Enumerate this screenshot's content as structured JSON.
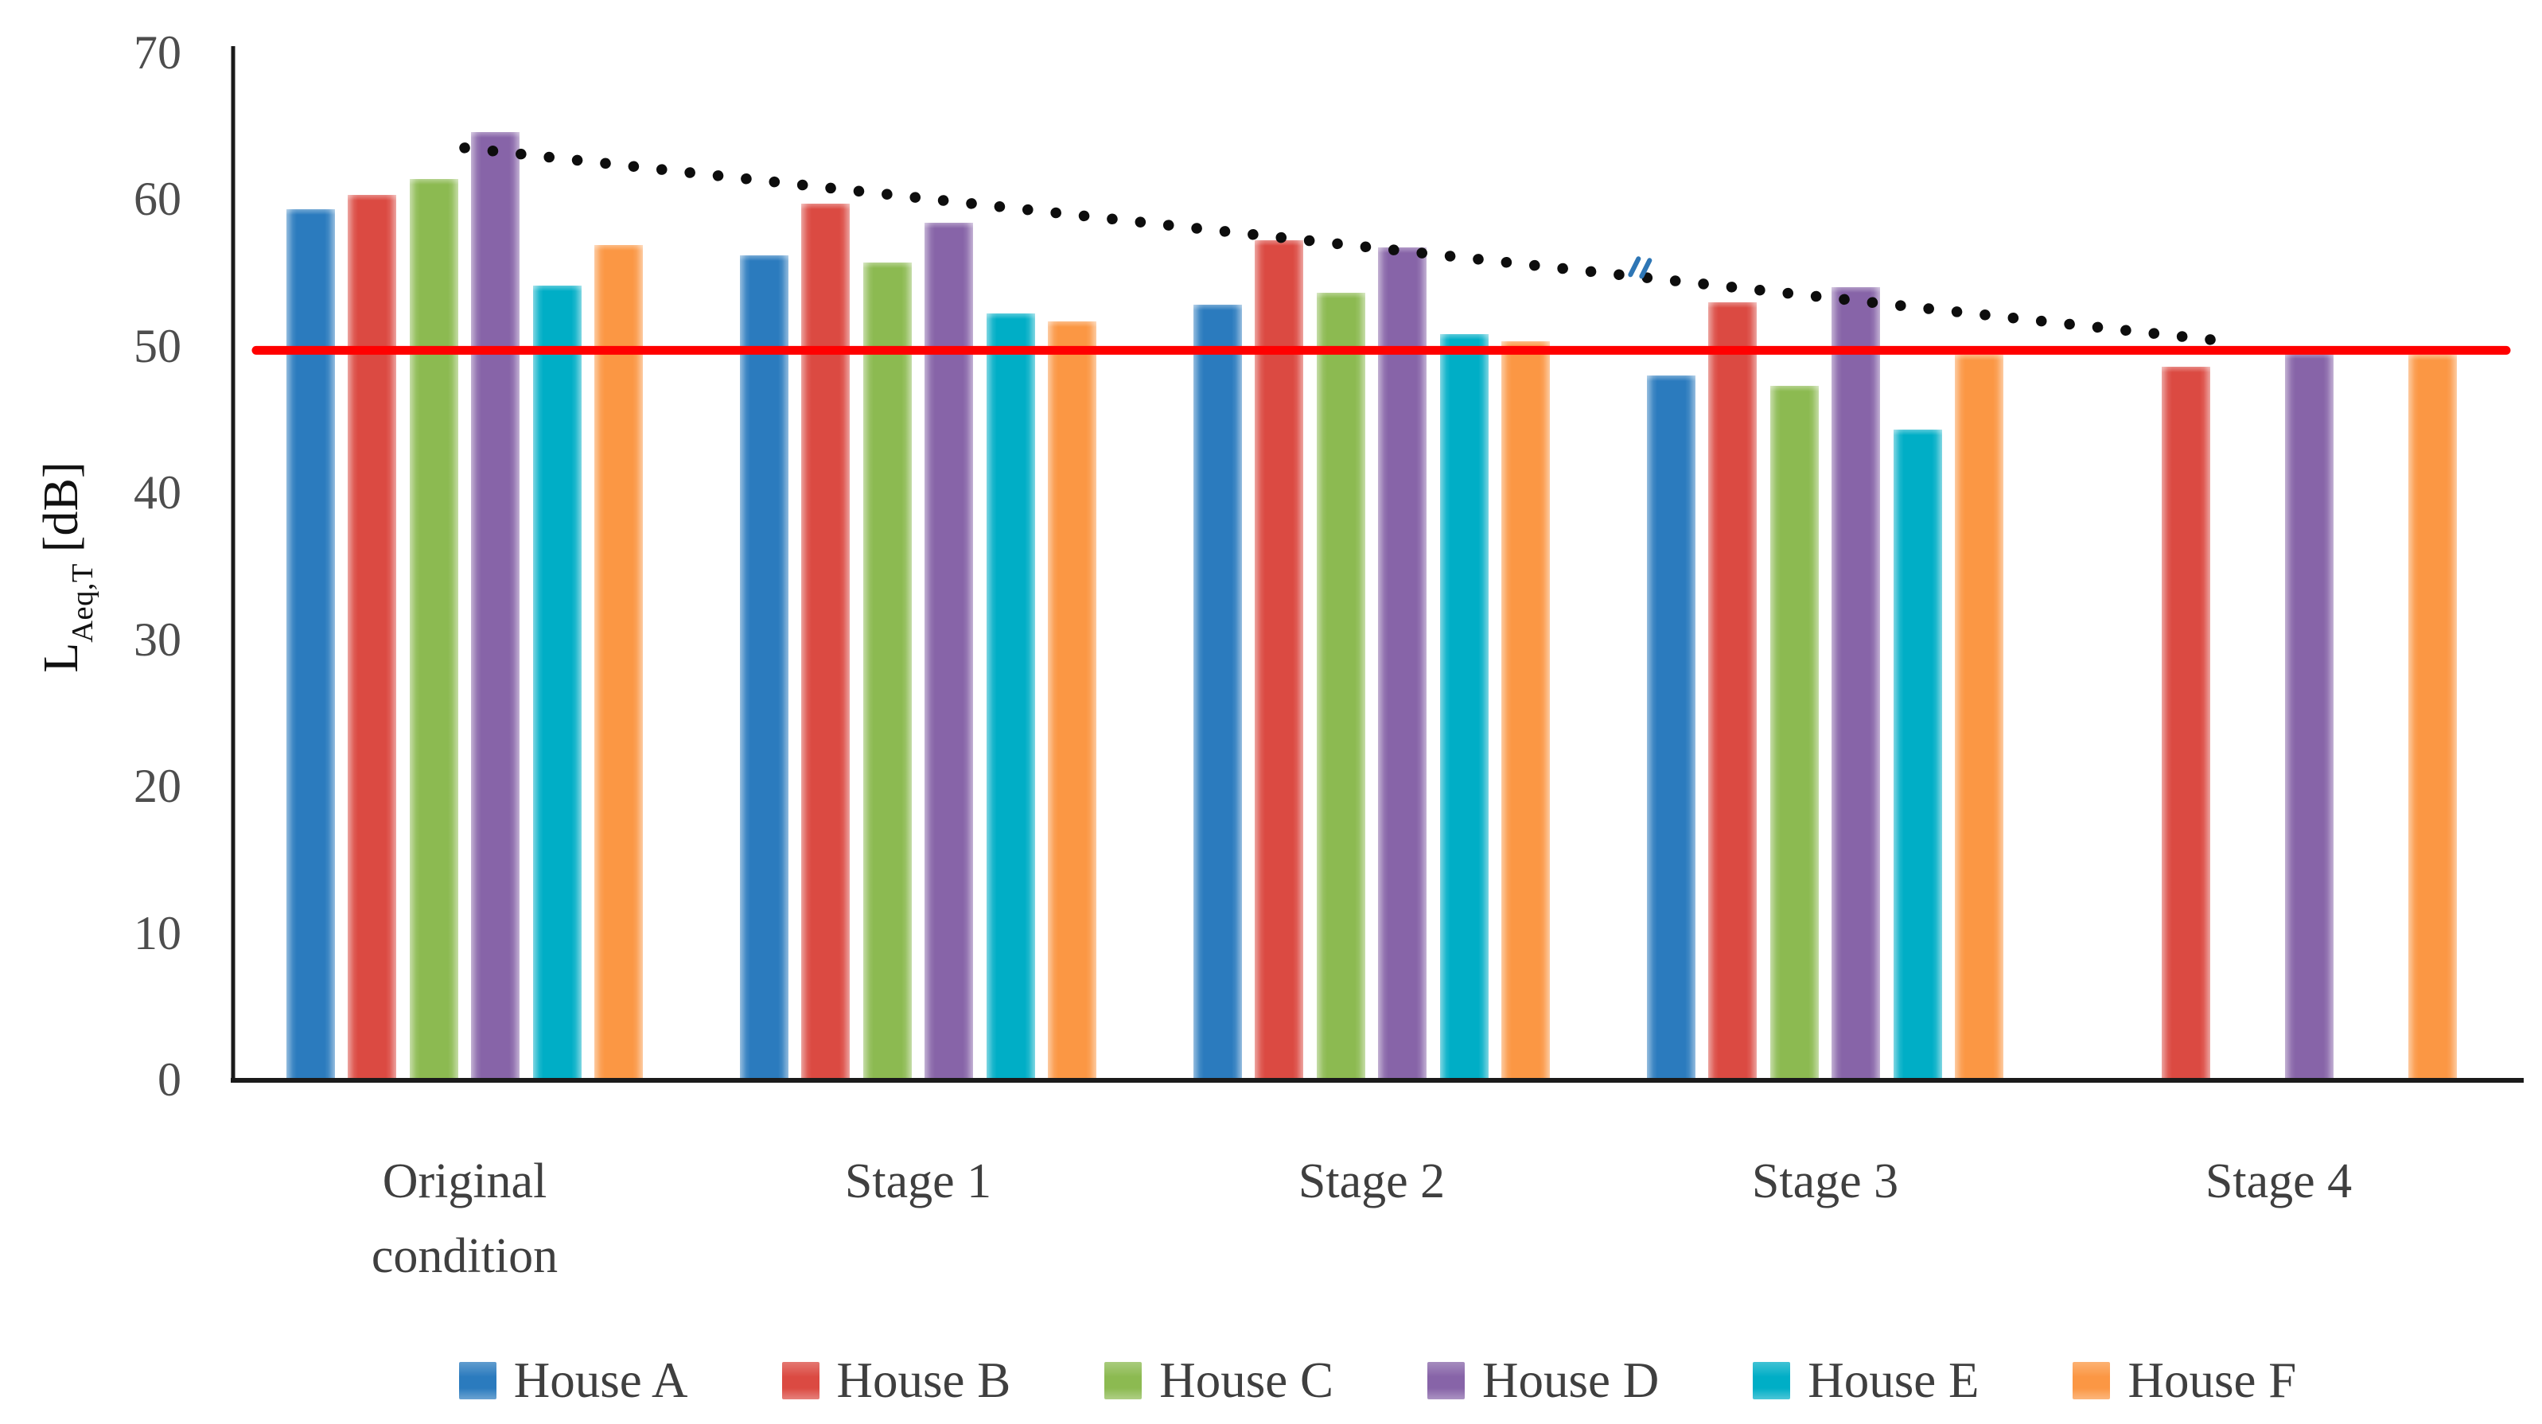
{
  "figure_type": "static-chart-image",
  "chart_data": {
    "type": "bar",
    "title": "",
    "ylabel": {
      "base": "L",
      "subscript": "Aeq,T",
      "unit": "[dB]"
    },
    "y_ticks": [
      0,
      10,
      20,
      30,
      40,
      50,
      60,
      70
    ],
    "ylim": [
      0,
      70
    ],
    "grid": false,
    "legend_position": "bottom",
    "categories": [
      "Original condition",
      "Stage 1",
      "Stage 2",
      "Stage 3",
      "Stage 4"
    ],
    "category_label_lines": [
      [
        "Original",
        "condition"
      ],
      [
        "Stage 1"
      ],
      [
        "Stage 2"
      ],
      [
        "Stage 3"
      ],
      [
        "Stage 4"
      ]
    ],
    "series": [
      {
        "name": "House A",
        "color": "#2B7BBE",
        "values": [
          59.3,
          56.2,
          52.8,
          48.0,
          null
        ]
      },
      {
        "name": "House B",
        "color": "#DB4A42",
        "values": [
          60.3,
          59.7,
          57.2,
          53.0,
          48.6
        ]
      },
      {
        "name": "House C",
        "color": "#8CBA51",
        "values": [
          61.4,
          55.7,
          53.6,
          47.3,
          null
        ]
      },
      {
        "name": "House D",
        "color": "#8764A8",
        "values": [
          64.6,
          58.4,
          56.7,
          54.0,
          49.5
        ]
      },
      {
        "name": "House E",
        "color": "#00AEC6",
        "values": [
          54.1,
          52.2,
          50.8,
          44.3,
          null
        ]
      },
      {
        "name": "House F",
        "color": "#FB9744",
        "values": [
          56.9,
          51.7,
          50.3,
          49.4,
          49.4
        ]
      }
    ],
    "limit_line": {
      "value": 49.7,
      "color": "#FF0000",
      "style": "solid"
    },
    "trendline": {
      "style": "dotted",
      "color": "#0d0d0d",
      "start": {
        "category_index": 0,
        "value": 63.5
      },
      "end": {
        "category_index": 4,
        "value": 50.3
      }
    },
    "annotations": [
      {
        "type": "small-blue-double-slash-mark",
        "value": 55.4,
        "x_fraction_of_plot": 0.615,
        "color": "#2E76B5"
      }
    ]
  }
}
